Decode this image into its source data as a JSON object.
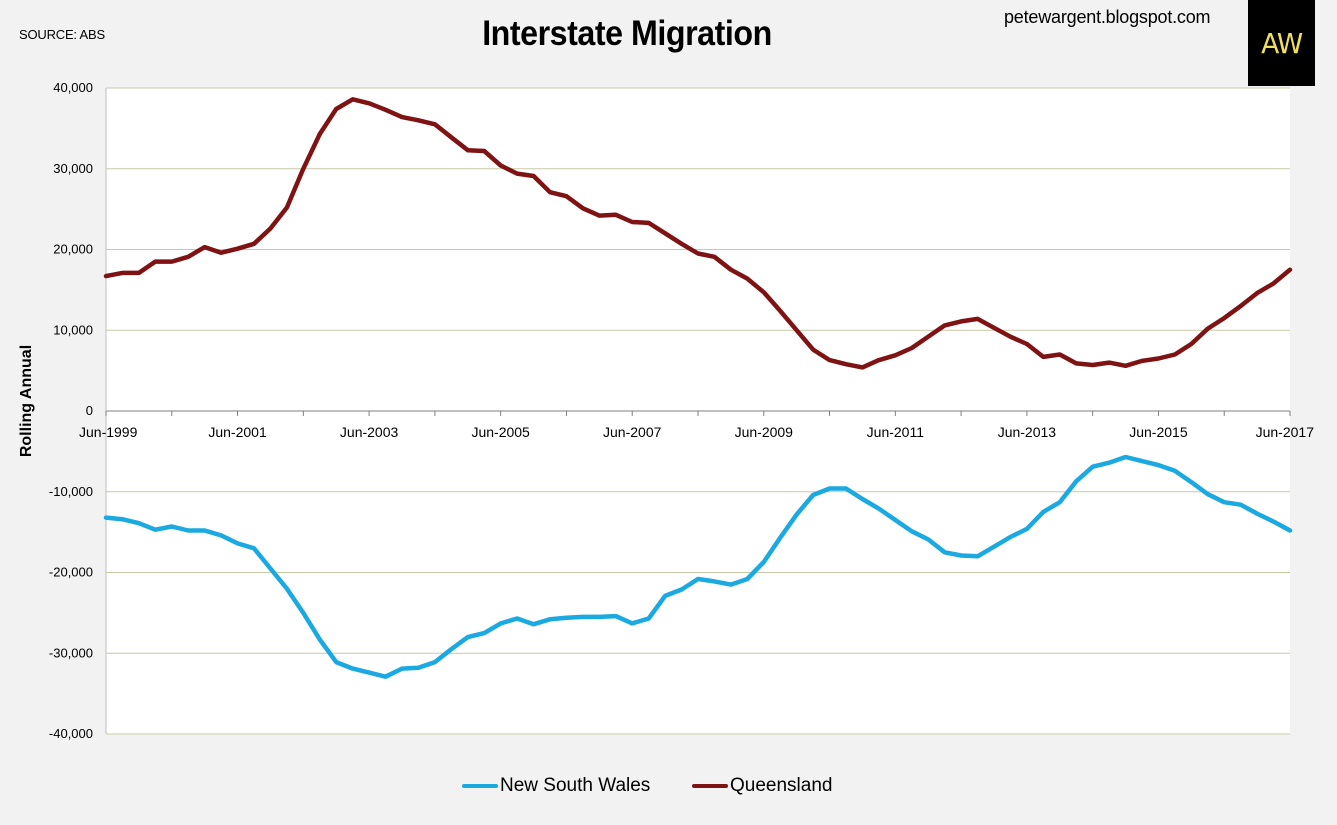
{
  "header": {
    "source": "SOURCE: ABS",
    "title": "Interstate Migration",
    "site": "petewargent.blogspot.com",
    "logo_text": "AW"
  },
  "chart_data": {
    "type": "line",
    "title": "Interstate Migration",
    "ylabel": "Rolling Annual",
    "xlabel": "",
    "ylim": [
      -40000,
      40000
    ],
    "y_ticks": [
      40000,
      30000,
      20000,
      10000,
      0,
      -10000,
      -20000,
      -30000,
      -40000
    ],
    "y_tick_labels": [
      "40,000",
      "30,000",
      "20,000",
      "10,000",
      "0",
      "-10,000",
      "-20,000",
      "-30,000",
      "-40,000"
    ],
    "x_tick_labels": [
      "Jun-1999",
      "Jun-2001",
      "Jun-2003",
      "Jun-2005",
      "Jun-2007",
      "Jun-2009",
      "Jun-2011",
      "Jun-2013",
      "Jun-2015",
      "Jun-2017"
    ],
    "x_start": "Jun-1999",
    "x_end": "Jun-2017",
    "points_per_year": 4,
    "grid": true,
    "legend_position": "bottom-center",
    "series": [
      {
        "name": "New South Wales",
        "color": "#1aa9e0",
        "values": [
          -13200,
          -13400,
          -13900,
          -14700,
          -14300,
          -14800,
          -14800,
          -15400,
          -16400,
          -17000,
          -19500,
          -22000,
          -25000,
          -28300,
          -31100,
          -31900,
          -32400,
          -32900,
          -31900,
          -31800,
          -31100,
          -29500,
          -28000,
          -27500,
          -26300,
          -25700,
          -26400,
          -25800,
          -25600,
          -25500,
          -25500,
          -25400,
          -26300,
          -25700,
          -22900,
          -22100,
          -20800,
          -21100,
          -21500,
          -20800,
          -18700,
          -15700,
          -12800,
          -10400,
          -9600,
          -9600,
          -10900,
          -12100,
          -13500,
          -14900,
          -15900,
          -17500,
          -17900,
          -18000,
          -16800,
          -15600,
          -14600,
          -12500,
          -11300,
          -8700,
          -6900,
          -6400,
          -5700,
          -6200,
          -6700,
          -7400,
          -8800,
          -10300,
          -11300,
          -11600,
          -12700,
          -13700,
          -14800
        ]
      },
      {
        "name": "Queensland",
        "color": "#7f1212",
        "values": [
          16700,
          17100,
          17100,
          18500,
          18500,
          19100,
          20300,
          19600,
          20100,
          20700,
          22600,
          25200,
          30000,
          34300,
          37400,
          38600,
          38100,
          37300,
          36400,
          36000,
          35500,
          33900,
          32300,
          32200,
          30400,
          29400,
          29100,
          27100,
          26600,
          25100,
          24200,
          24300,
          23400,
          23300,
          22000,
          20700,
          19500,
          19100,
          17500,
          16400,
          14700,
          12400,
          10000,
          7600,
          6300,
          5800,
          5400,
          6300,
          6900,
          7800,
          9200,
          10600,
          11100,
          11400,
          10300,
          9200,
          8300,
          6700,
          7000,
          5900,
          5700,
          6000,
          5600,
          6200,
          6500,
          7000,
          8300,
          10200,
          11500,
          13000,
          14600,
          15800,
          17500
        ]
      }
    ]
  }
}
